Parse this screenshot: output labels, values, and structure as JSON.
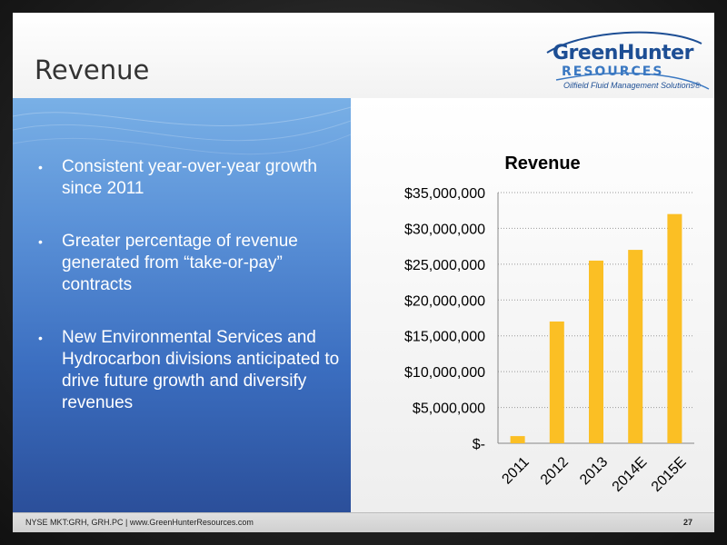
{
  "header": {
    "title": "Revenue",
    "logo": {
      "line1": "GreenHunter",
      "line2": "RESOURCES",
      "line3": "Oilfield Fluid Management Solutions®"
    }
  },
  "bullets": [
    "Consistent  year-over-year growth since 2011",
    "Greater percentage of revenue generated from “take-or-pay” contracts",
    "New Environmental Services and Hydrocarbon divisions anticipated to drive future growth and diversify revenues"
  ],
  "footer": {
    "text": "NYSE MKT:GRH, GRH.PC  |  www.GreenHunterResources.com",
    "page": "27"
  },
  "colors": {
    "bar": "#fbbf24",
    "accent": "#1d4e94"
  },
  "chart_data": {
    "type": "bar",
    "title": "Revenue",
    "categories": [
      "2011",
      "2012",
      "2013",
      "2014E",
      "2015E"
    ],
    "values": [
      1000000,
      17000000,
      25500000,
      27000000,
      32000000
    ],
    "ylim": [
      0,
      35000000
    ],
    "yticks": [
      0,
      5000000,
      10000000,
      15000000,
      20000000,
      25000000,
      30000000,
      35000000
    ],
    "ytick_labels": [
      "$-",
      "$5,000,000",
      "$10,000,000",
      "$15,000,000",
      "$20,000,000",
      "$25,000,000",
      "$30,000,000",
      "$35,000,000"
    ],
    "grid": true
  }
}
